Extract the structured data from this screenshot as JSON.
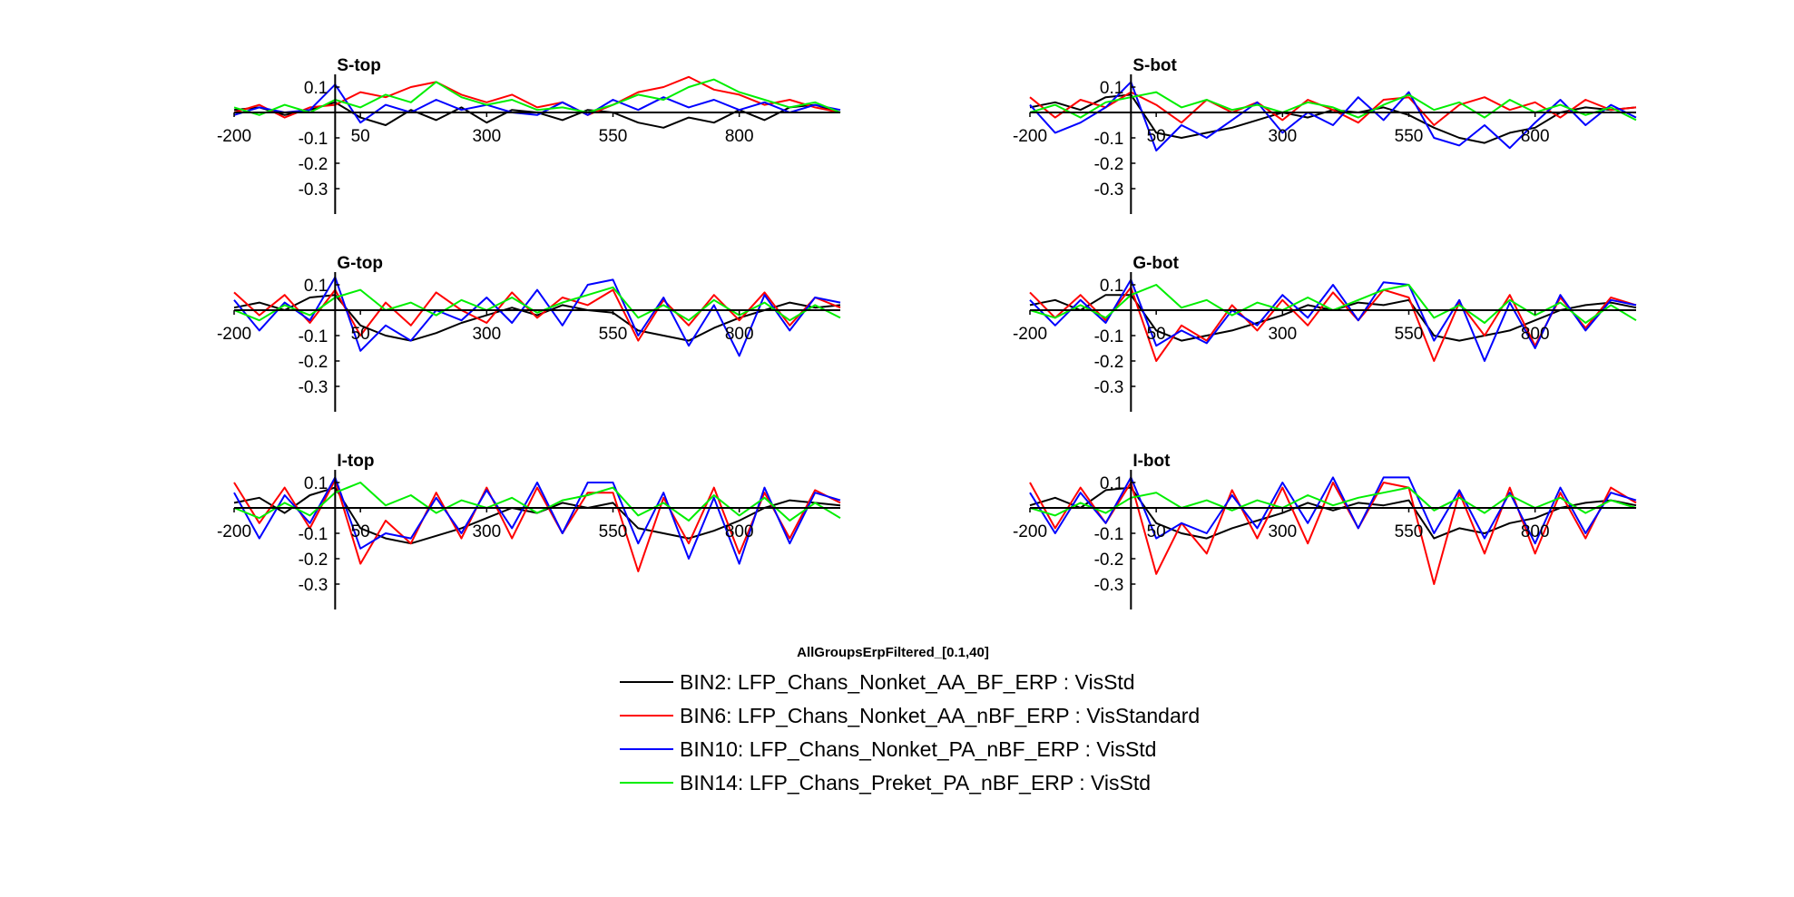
{
  "figure_title": "AllGroupsErpFiltered_[0.1,40]",
  "legend": [
    {
      "label": "BIN2: LFP_Chans_Nonket_AA_BF_ERP : VisStd",
      "color": "#000000"
    },
    {
      "label": "BIN6: LFP_Chans_Nonket_AA_nBF_ERP : VisStandard",
      "color": "#ff0000"
    },
    {
      "label": "BIN10: LFP_Chans_Nonket_PA_nBF_ERP : VisStd",
      "color": "#0000ff"
    },
    {
      "label": "BIN14: LFP_Chans_Preket_PA_nBF_ERP : VisStd",
      "color": "#00ee00"
    }
  ],
  "chart_data": [
    {
      "type": "line",
      "title": "S-top",
      "xlim": [
        -200,
        1000
      ],
      "ylim": [
        -0.4,
        0.15
      ],
      "xticks": [
        -200,
        50,
        300,
        550,
        800
      ],
      "yticks": [
        0.1,
        -0.1,
        -0.2,
        -0.3
      ],
      "x": [
        -200,
        -150,
        -100,
        -50,
        0,
        50,
        100,
        150,
        200,
        250,
        300,
        350,
        400,
        450,
        500,
        550,
        600,
        650,
        700,
        750,
        800,
        850,
        900,
        950,
        1000
      ],
      "series": [
        {
          "values": [
            0.01,
            0.02,
            -0.01,
            0.01,
            0.04,
            -0.02,
            -0.05,
            0.01,
            -0.03,
            0.02,
            -0.04,
            0.01,
            0.0,
            -0.03,
            0.01,
            0.0,
            -0.04,
            -0.06,
            -0.02,
            -0.04,
            0.01,
            -0.03,
            0.02,
            0.03,
            0.0
          ],
          "color": "#000000"
        },
        {
          "values": [
            0.0,
            0.03,
            -0.02,
            0.02,
            0.03,
            0.08,
            0.06,
            0.1,
            0.12,
            0.07,
            0.04,
            0.07,
            0.02,
            0.04,
            -0.01,
            0.03,
            0.08,
            0.1,
            0.14,
            0.09,
            0.07,
            0.03,
            0.05,
            0.02,
            0.0
          ],
          "color": "#ff0000"
        },
        {
          "values": [
            -0.01,
            0.02,
            0.0,
            0.01,
            0.11,
            -0.04,
            0.03,
            0.0,
            0.05,
            0.01,
            0.03,
            0.0,
            -0.01,
            0.04,
            -0.01,
            0.05,
            0.01,
            0.06,
            0.02,
            0.05,
            0.01,
            0.04,
            0.0,
            0.03,
            0.01
          ],
          "color": "#0000ff"
        },
        {
          "values": [
            0.02,
            -0.01,
            0.03,
            0.0,
            0.05,
            0.02,
            0.07,
            0.04,
            0.12,
            0.06,
            0.03,
            0.05,
            0.01,
            0.02,
            0.0,
            0.03,
            0.07,
            0.05,
            0.1,
            0.13,
            0.08,
            0.05,
            0.02,
            0.04,
            0.0
          ],
          "color": "#00ee00"
        }
      ]
    },
    {
      "type": "line",
      "title": "S-bot",
      "xlim": [
        -200,
        1000
      ],
      "ylim": [
        -0.4,
        0.15
      ],
      "xticks": [
        -200,
        50,
        300,
        550,
        800
      ],
      "yticks": [
        0.1,
        -0.1,
        -0.2,
        -0.3
      ],
      "x": [
        -200,
        -150,
        -100,
        -50,
        0,
        50,
        100,
        150,
        200,
        250,
        300,
        350,
        400,
        450,
        500,
        550,
        600,
        650,
        700,
        750,
        800,
        850,
        900,
        950,
        1000
      ],
      "series": [
        {
          "values": [
            0.02,
            0.04,
            0.01,
            0.06,
            0.07,
            -0.08,
            -0.1,
            -0.08,
            -0.06,
            -0.03,
            0.0,
            -0.02,
            0.01,
            0.0,
            0.02,
            -0.01,
            -0.06,
            -0.1,
            -0.12,
            -0.08,
            -0.06,
            0.0,
            0.02,
            0.01,
            0.02
          ],
          "color": "#000000"
        },
        {
          "values": [
            0.06,
            -0.02,
            0.05,
            0.02,
            0.08,
            0.03,
            -0.04,
            0.05,
            0.0,
            0.04,
            -0.03,
            0.05,
            0.01,
            -0.04,
            0.05,
            0.06,
            -0.05,
            0.03,
            0.06,
            0.01,
            0.04,
            -0.02,
            0.05,
            0.01,
            0.02
          ],
          "color": "#ff0000"
        },
        {
          "values": [
            0.03,
            -0.08,
            -0.04,
            0.02,
            0.12,
            -0.15,
            -0.05,
            -0.1,
            -0.03,
            0.04,
            -0.08,
            0.0,
            -0.05,
            0.06,
            -0.03,
            0.08,
            -0.1,
            -0.13,
            -0.05,
            -0.14,
            -0.04,
            0.05,
            -0.05,
            0.03,
            -0.02
          ],
          "color": "#0000ff"
        },
        {
          "values": [
            0.0,
            0.03,
            -0.02,
            0.04,
            0.06,
            0.08,
            0.02,
            0.05,
            0.01,
            0.03,
            0.0,
            0.04,
            0.02,
            -0.02,
            0.03,
            0.07,
            0.01,
            0.04,
            -0.02,
            0.05,
            0.0,
            0.03,
            -0.01,
            0.02,
            -0.03
          ],
          "color": "#00ee00"
        }
      ]
    },
    {
      "type": "line",
      "title": "G-top",
      "xlim": [
        -200,
        1000
      ],
      "ylim": [
        -0.4,
        0.15
      ],
      "xticks": [
        -200,
        50,
        300,
        550,
        800
      ],
      "yticks": [
        0.1,
        -0.1,
        -0.2,
        -0.3
      ],
      "x": [
        -200,
        -150,
        -100,
        -50,
        0,
        50,
        100,
        150,
        200,
        250,
        300,
        350,
        400,
        450,
        500,
        550,
        600,
        650,
        700,
        750,
        800,
        850,
        900,
        950,
        1000
      ],
      "series": [
        {
          "values": [
            0.01,
            0.03,
            0.0,
            0.05,
            0.06,
            -0.06,
            -0.1,
            -0.12,
            -0.09,
            -0.05,
            -0.02,
            0.01,
            -0.02,
            0.02,
            0.0,
            -0.01,
            -0.08,
            -0.1,
            -0.12,
            -0.07,
            -0.03,
            0.0,
            0.03,
            0.01,
            0.02
          ],
          "color": "#000000"
        },
        {
          "values": [
            0.07,
            -0.02,
            0.06,
            -0.05,
            0.08,
            -0.1,
            0.03,
            -0.06,
            0.07,
            0.0,
            -0.05,
            0.07,
            -0.03,
            0.05,
            0.02,
            0.08,
            -0.12,
            0.04,
            -0.06,
            0.06,
            -0.04,
            0.07,
            -0.06,
            0.05,
            0.01
          ],
          "color": "#ff0000"
        },
        {
          "values": [
            0.04,
            -0.08,
            0.03,
            -0.04,
            0.13,
            -0.16,
            -0.06,
            -0.12,
            0.0,
            -0.04,
            0.05,
            -0.05,
            0.08,
            -0.06,
            0.1,
            0.12,
            -0.1,
            0.05,
            -0.14,
            0.02,
            -0.18,
            0.06,
            -0.08,
            0.05,
            0.03
          ],
          "color": "#0000ff"
        },
        {
          "values": [
            0.0,
            -0.04,
            0.02,
            -0.02,
            0.05,
            0.08,
            0.0,
            0.03,
            -0.02,
            0.04,
            0.0,
            0.05,
            -0.01,
            0.03,
            0.06,
            0.09,
            -0.03,
            0.02,
            -0.04,
            0.04,
            -0.02,
            0.03,
            -0.04,
            0.02,
            -0.03
          ],
          "color": "#00ee00"
        }
      ]
    },
    {
      "type": "line",
      "title": "G-bot",
      "xlim": [
        -200,
        1000
      ],
      "ylim": [
        -0.4,
        0.15
      ],
      "xticks": [
        -200,
        50,
        300,
        550,
        800
      ],
      "yticks": [
        0.1,
        -0.1,
        -0.2,
        -0.3
      ],
      "x": [
        -200,
        -150,
        -100,
        -50,
        0,
        50,
        100,
        150,
        200,
        250,
        300,
        350,
        400,
        450,
        500,
        550,
        600,
        650,
        700,
        750,
        800,
        850,
        900,
        950,
        1000
      ],
      "series": [
        {
          "values": [
            0.02,
            0.04,
            0.0,
            0.06,
            0.06,
            -0.08,
            -0.12,
            -0.1,
            -0.08,
            -0.05,
            -0.02,
            0.02,
            0.0,
            0.03,
            0.02,
            0.04,
            -0.1,
            -0.12,
            -0.1,
            -0.08,
            -0.04,
            0.0,
            0.02,
            0.03,
            0.01
          ],
          "color": "#000000"
        },
        {
          "values": [
            0.07,
            -0.03,
            0.06,
            -0.04,
            0.09,
            -0.2,
            -0.06,
            -0.12,
            0.02,
            -0.08,
            0.04,
            -0.06,
            0.07,
            -0.04,
            0.08,
            0.05,
            -0.2,
            0.03,
            -0.1,
            0.06,
            -0.14,
            0.05,
            -0.07,
            0.05,
            0.02
          ],
          "color": "#ff0000"
        },
        {
          "values": [
            0.04,
            -0.06,
            0.04,
            -0.05,
            0.12,
            -0.14,
            -0.08,
            -0.13,
            0.0,
            -0.06,
            0.06,
            -0.03,
            0.1,
            -0.04,
            0.11,
            0.1,
            -0.12,
            0.04,
            -0.2,
            0.03,
            -0.15,
            0.06,
            -0.08,
            0.04,
            0.02
          ],
          "color": "#0000ff"
        },
        {
          "values": [
            0.0,
            -0.03,
            0.02,
            -0.03,
            0.06,
            0.1,
            0.01,
            0.04,
            -0.02,
            0.03,
            0.0,
            0.05,
            0.0,
            0.04,
            0.08,
            0.1,
            -0.03,
            0.02,
            -0.05,
            0.04,
            -0.02,
            0.03,
            -0.05,
            0.02,
            -0.04
          ],
          "color": "#00ee00"
        }
      ]
    },
    {
      "type": "line",
      "title": "I-top",
      "xlim": [
        -200,
        1000
      ],
      "ylim": [
        -0.4,
        0.15
      ],
      "xticks": [
        -200,
        50,
        300,
        550,
        800
      ],
      "yticks": [
        0.1,
        -0.1,
        -0.2,
        -0.3
      ],
      "x": [
        -200,
        -150,
        -100,
        -50,
        0,
        50,
        100,
        150,
        200,
        250,
        300,
        350,
        400,
        450,
        500,
        550,
        600,
        650,
        700,
        750,
        800,
        850,
        900,
        950,
        1000
      ],
      "series": [
        {
          "values": [
            0.02,
            0.04,
            -0.02,
            0.05,
            0.08,
            -0.08,
            -0.12,
            -0.14,
            -0.11,
            -0.08,
            -0.04,
            0.0,
            -0.02,
            0.02,
            0.0,
            0.02,
            -0.08,
            -0.1,
            -0.12,
            -0.09,
            -0.05,
            0.0,
            0.03,
            0.02,
            0.01
          ],
          "color": "#000000"
        },
        {
          "values": [
            0.1,
            -0.06,
            0.08,
            -0.08,
            0.11,
            -0.22,
            -0.05,
            -0.14,
            0.06,
            -0.12,
            0.08,
            -0.12,
            0.08,
            -0.1,
            0.06,
            0.06,
            -0.25,
            0.04,
            -0.14,
            0.08,
            -0.18,
            0.06,
            -0.12,
            0.07,
            0.02
          ],
          "color": "#ff0000"
        },
        {
          "values": [
            0.06,
            -0.12,
            0.05,
            -0.06,
            0.12,
            -0.16,
            -0.1,
            -0.12,
            0.04,
            -0.1,
            0.07,
            -0.08,
            0.1,
            -0.1,
            0.1,
            0.1,
            -0.14,
            0.06,
            -0.2,
            0.04,
            -0.22,
            0.08,
            -0.14,
            0.06,
            0.03
          ],
          "color": "#0000ff"
        },
        {
          "values": [
            0.0,
            -0.04,
            0.02,
            -0.03,
            0.06,
            0.1,
            0.01,
            0.05,
            -0.02,
            0.03,
            0.0,
            0.04,
            -0.02,
            0.03,
            0.05,
            0.08,
            -0.03,
            0.02,
            -0.05,
            0.05,
            -0.03,
            0.04,
            -0.05,
            0.02,
            -0.04
          ],
          "color": "#00ee00"
        }
      ]
    },
    {
      "type": "line",
      "title": "I-bot",
      "xlim": [
        -200,
        1000
      ],
      "ylim": [
        -0.4,
        0.15
      ],
      "xticks": [
        -200,
        50,
        300,
        550,
        800
      ],
      "yticks": [
        0.1,
        -0.1,
        -0.2,
        -0.3
      ],
      "x": [
        -200,
        -150,
        -100,
        -50,
        0,
        50,
        100,
        150,
        200,
        250,
        300,
        350,
        400,
        450,
        500,
        550,
        600,
        650,
        700,
        750,
        800,
        850,
        900,
        950,
        1000
      ],
      "series": [
        {
          "values": [
            0.01,
            0.04,
            0.0,
            0.07,
            0.08,
            -0.06,
            -0.1,
            -0.12,
            -0.08,
            -0.05,
            -0.02,
            0.02,
            -0.01,
            0.02,
            0.01,
            0.03,
            -0.12,
            -0.08,
            -0.1,
            -0.06,
            -0.04,
            0.0,
            0.02,
            0.03,
            0.01
          ],
          "color": "#000000"
        },
        {
          "values": [
            0.1,
            -0.08,
            0.08,
            -0.06,
            0.1,
            -0.26,
            -0.06,
            -0.18,
            0.07,
            -0.12,
            0.08,
            -0.14,
            0.1,
            -0.08,
            0.1,
            0.08,
            -0.3,
            0.06,
            -0.18,
            0.08,
            -0.18,
            0.06,
            -0.12,
            0.08,
            0.02
          ],
          "color": "#ff0000"
        },
        {
          "values": [
            0.06,
            -0.1,
            0.06,
            -0.06,
            0.12,
            -0.12,
            -0.06,
            -0.1,
            0.05,
            -0.08,
            0.1,
            -0.06,
            0.12,
            -0.08,
            0.12,
            0.12,
            -0.1,
            0.07,
            -0.12,
            0.06,
            -0.14,
            0.08,
            -0.1,
            0.06,
            0.03
          ],
          "color": "#0000ff"
        },
        {
          "values": [
            0.0,
            -0.03,
            0.02,
            -0.02,
            0.04,
            0.06,
            0.0,
            0.03,
            -0.01,
            0.03,
            0.0,
            0.05,
            0.01,
            0.04,
            0.06,
            0.08,
            -0.01,
            0.04,
            -0.02,
            0.05,
            0.0,
            0.04,
            -0.02,
            0.03,
            0.0
          ],
          "color": "#00ee00"
        }
      ]
    }
  ]
}
